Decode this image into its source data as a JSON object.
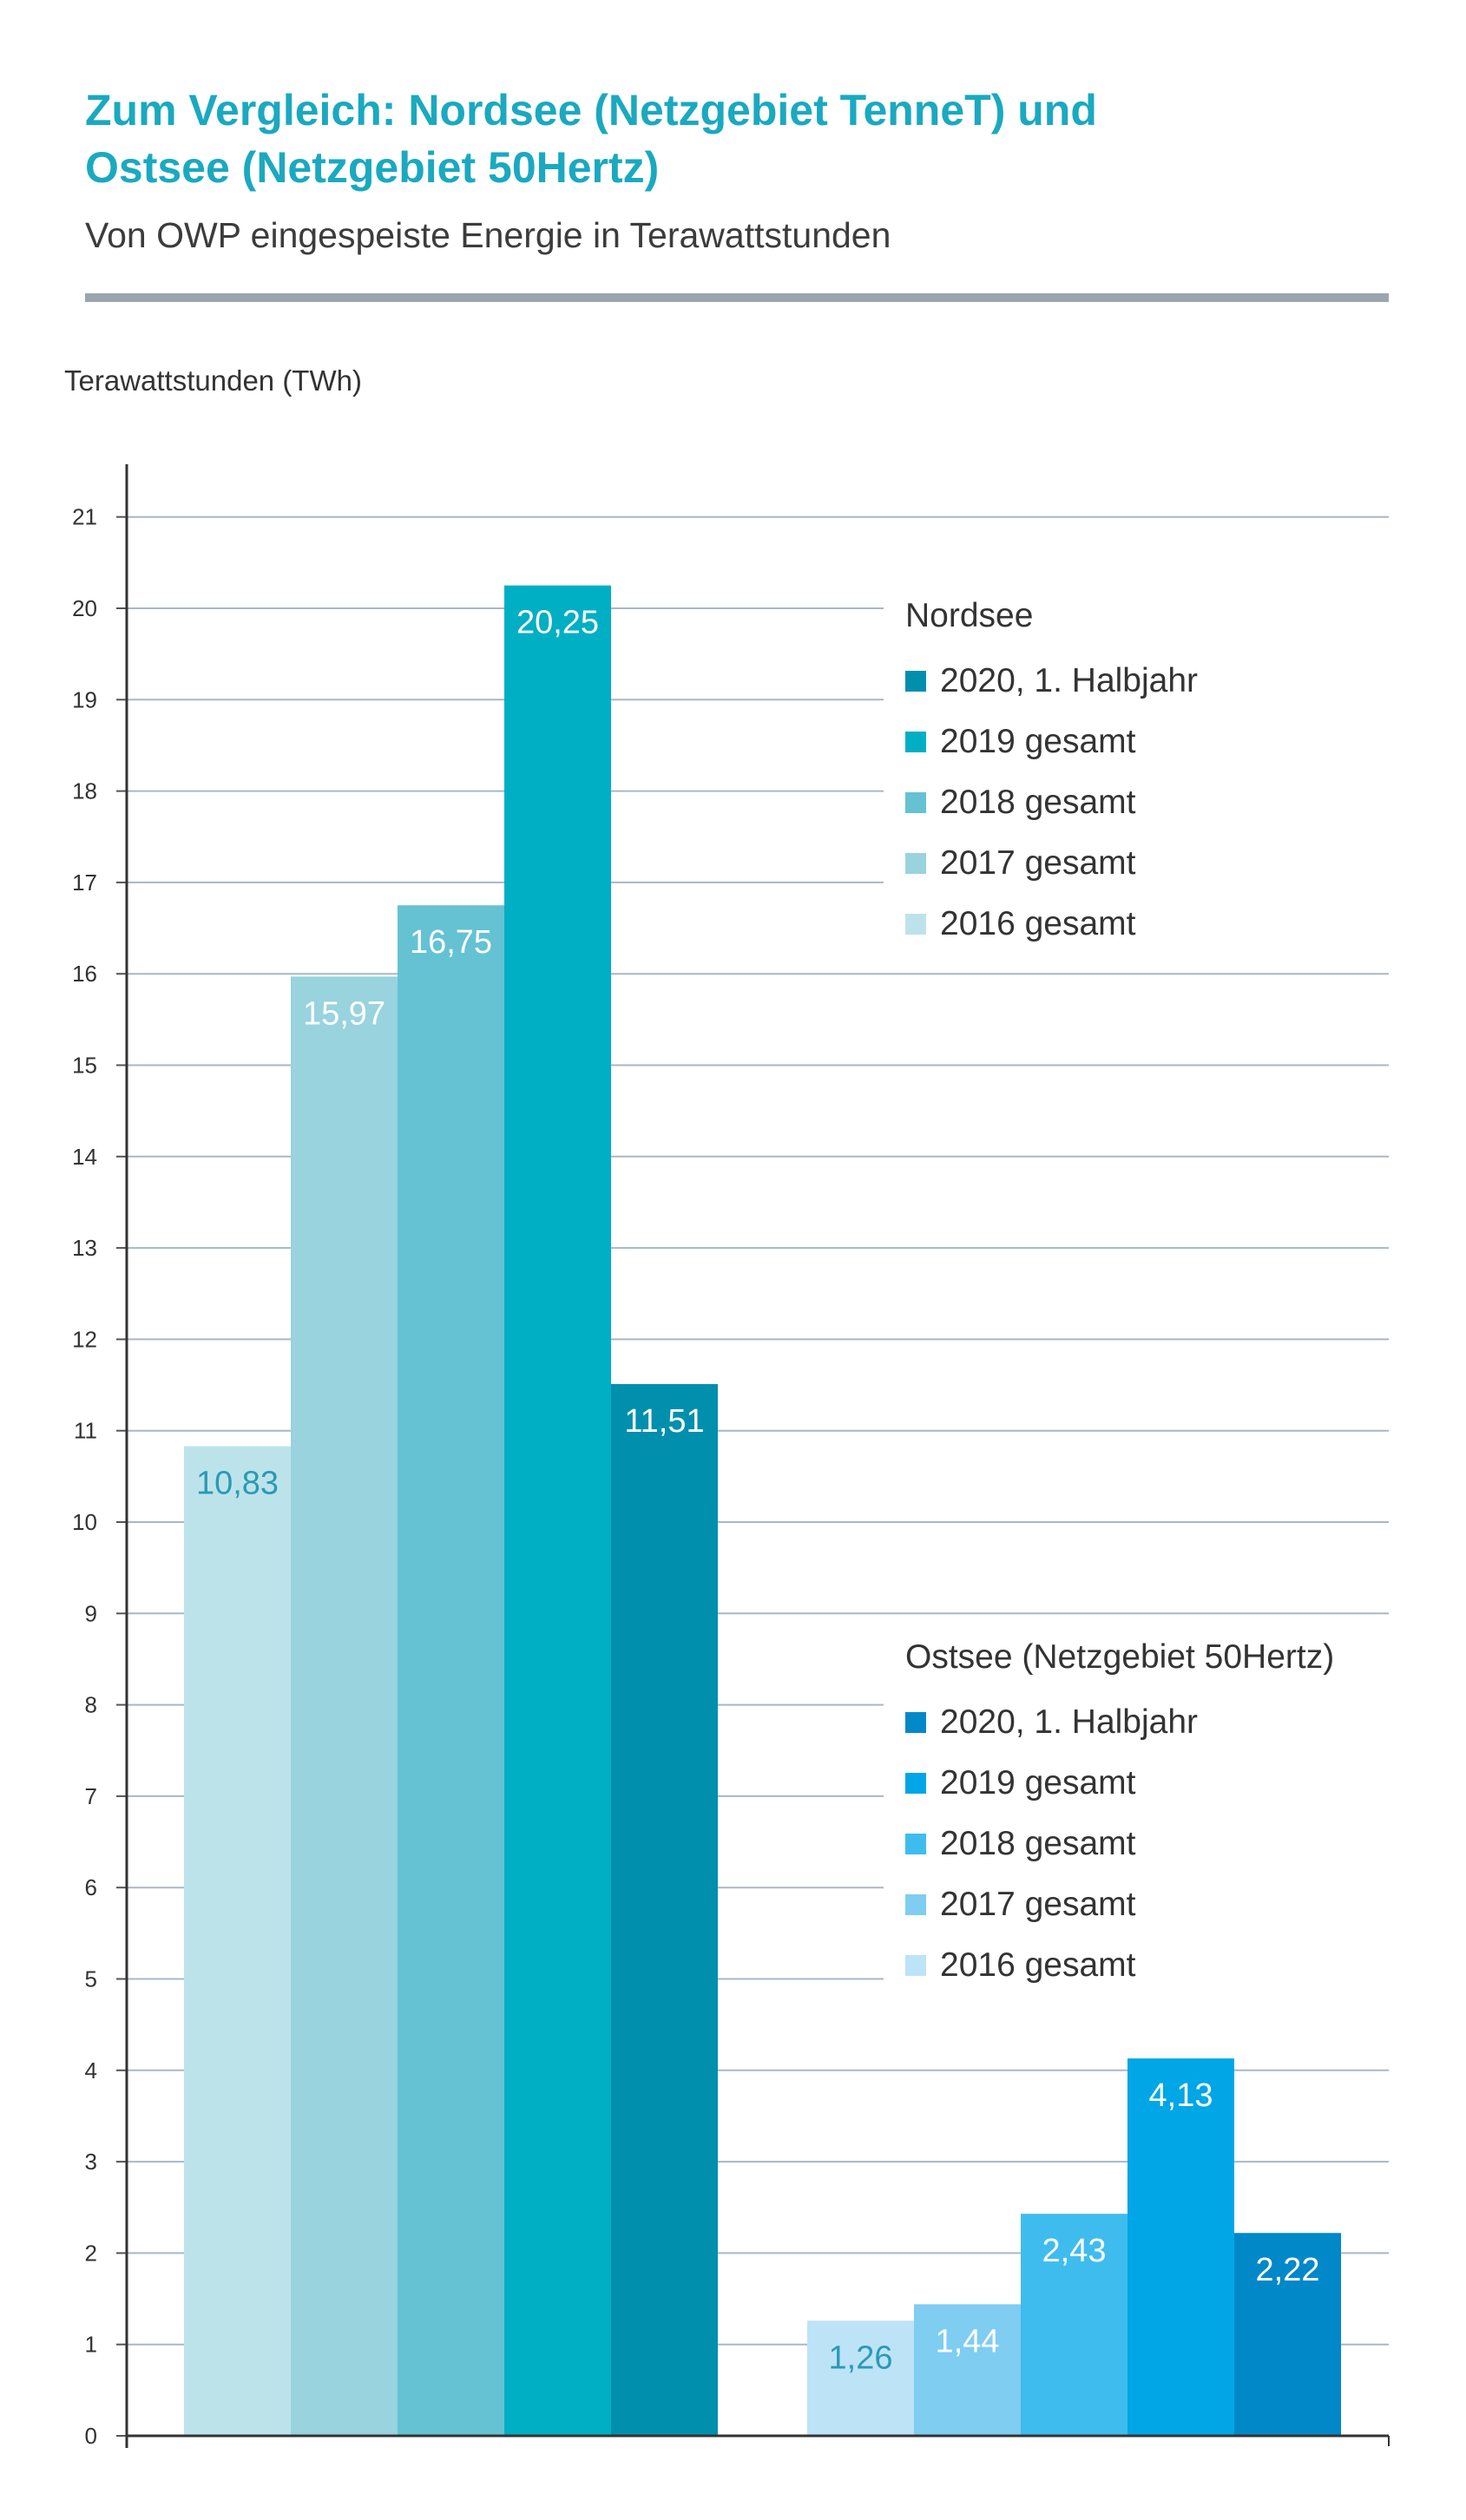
{
  "header": {
    "title_line1": "Zum Vergleich: Nordsee (Netzgebiet TenneT) und",
    "title_line2": "Ostsee (Netzgebiet 50Hertz)",
    "subtitle": "Von OWP eingespeiste Energie in Terawattstunden"
  },
  "chart_data": {
    "type": "bar",
    "ylabel": "Terawattstunden (TWh)",
    "ylim": [
      0,
      21
    ],
    "yticks": [
      0,
      1,
      2,
      3,
      4,
      5,
      6,
      7,
      8,
      9,
      10,
      11,
      12,
      13,
      14,
      15,
      16,
      17,
      18,
      19,
      20,
      21
    ],
    "grid": true,
    "groups": [
      {
        "legend_title": "Nordsee",
        "legend_placement": "right",
        "bars": [
          {
            "label": "2016 gesamt",
            "value": 10.83,
            "value_label": "10,83",
            "color": "#bde3ea",
            "label_color": "#2a9ab5"
          },
          {
            "label": "2017 gesamt",
            "value": 15.97,
            "value_label": "15,97",
            "color": "#98d3de",
            "label_color": "#ffffff"
          },
          {
            "label": "2018 gesamt",
            "value": 16.75,
            "value_label": "16,75",
            "color": "#64c2d3",
            "label_color": "#ffffff"
          },
          {
            "label": "2019 gesamt",
            "value": 20.25,
            "value_label": "20,25",
            "color": "#00afc3",
            "label_color": "#ffffff"
          },
          {
            "label": "2020, 1. Halbjahr",
            "value": 11.51,
            "value_label": "11,51",
            "color": "#008fad",
            "label_color": "#ffffff"
          }
        ]
      },
      {
        "legend_title": "Ostsee (Netzgebiet 50Hertz)",
        "legend_placement": "right",
        "bars": [
          {
            "label": "2016 gesamt",
            "value": 1.26,
            "value_label": "1,26",
            "color": "#bde3f7",
            "label_color": "#2a9ab5"
          },
          {
            "label": "2017 gesamt",
            "value": 1.44,
            "value_label": "1,44",
            "color": "#7fcdf1",
            "label_color": "#ffffff"
          },
          {
            "label": "2018 gesamt",
            "value": 2.43,
            "value_label": "2,43",
            "color": "#3fbcee",
            "label_color": "#ffffff"
          },
          {
            "label": "2019 gesamt",
            "value": 4.13,
            "value_label": "4,13",
            "color": "#00a6e5",
            "label_color": "#ffffff"
          },
          {
            "label": "2020, 1. Halbjahr",
            "value": 2.22,
            "value_label": "2,22",
            "color": "#0088c8",
            "label_color": "#ffffff"
          }
        ]
      }
    ]
  }
}
